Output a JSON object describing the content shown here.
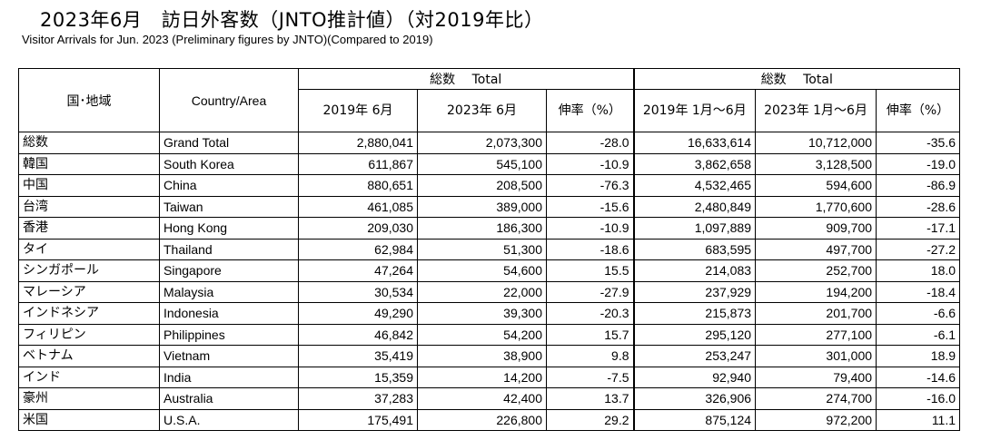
{
  "title": "2023年6月　訪日外客数（JNTO推計値）（対2019年比）",
  "subtitle": "Visitor Arrivals for Jun. 2023 (Preliminary figures by JNTO)(Compared to 2019)",
  "header": {
    "region_jp": "国･地域",
    "region_en": "Country/Area",
    "group_left": "総数　 Total",
    "group_right": "総数　 Total",
    "col_2019_month": "2019年 6月",
    "col_2023_month": "2023年 6月",
    "col_rate": "伸率（%）",
    "col_2019_ytd": "2019年 1月～6月",
    "col_2023_ytd": "2023年 1月～6月",
    "col_rate_ytd": "伸率（%）"
  },
  "rows": [
    {
      "jp": "総数",
      "en": "Grand Total",
      "m2019": "2,880,041",
      "m2023": "2,073,300",
      "rate": "-28.0",
      "y2019": "16,633,614",
      "y2023": "10,712,000",
      "yrate": "-35.6"
    },
    {
      "jp": "韓国",
      "en": "South Korea",
      "m2019": "611,867",
      "m2023": "545,100",
      "rate": "-10.9",
      "y2019": "3,862,658",
      "y2023": "3,128,500",
      "yrate": "-19.0"
    },
    {
      "jp": "中国",
      "en": "China",
      "m2019": "880,651",
      "m2023": "208,500",
      "rate": "-76.3",
      "y2019": "4,532,465",
      "y2023": "594,600",
      "yrate": "-86.9"
    },
    {
      "jp": "台湾",
      "en": "Taiwan",
      "m2019": "461,085",
      "m2023": "389,000",
      "rate": "-15.6",
      "y2019": "2,480,849",
      "y2023": "1,770,600",
      "yrate": "-28.6"
    },
    {
      "jp": "香港",
      "en": "Hong Kong",
      "m2019": "209,030",
      "m2023": "186,300",
      "rate": "-10.9",
      "y2019": "1,097,889",
      "y2023": "909,700",
      "yrate": "-17.1"
    },
    {
      "jp": "タイ",
      "en": "Thailand",
      "m2019": "62,984",
      "m2023": "51,300",
      "rate": "-18.6",
      "y2019": "683,595",
      "y2023": "497,700",
      "yrate": "-27.2"
    },
    {
      "jp": "シンガポール",
      "en": "Singapore",
      "m2019": "47,264",
      "m2023": "54,600",
      "rate": "15.5",
      "y2019": "214,083",
      "y2023": "252,700",
      "yrate": "18.0"
    },
    {
      "jp": "マレーシア",
      "en": "Malaysia",
      "m2019": "30,534",
      "m2023": "22,000",
      "rate": "-27.9",
      "y2019": "237,929",
      "y2023": "194,200",
      "yrate": "-18.4"
    },
    {
      "jp": "インドネシア",
      "en": "Indonesia",
      "m2019": "49,290",
      "m2023": "39,300",
      "rate": "-20.3",
      "y2019": "215,873",
      "y2023": "201,700",
      "yrate": "-6.6"
    },
    {
      "jp": "フィリピン",
      "en": "Philippines",
      "m2019": "46,842",
      "m2023": "54,200",
      "rate": "15.7",
      "y2019": "295,120",
      "y2023": "277,100",
      "yrate": "-6.1"
    },
    {
      "jp": "ベトナム",
      "en": "Vietnam",
      "m2019": "35,419",
      "m2023": "38,900",
      "rate": "9.8",
      "y2019": "253,247",
      "y2023": "301,000",
      "yrate": "18.9"
    },
    {
      "jp": "インド",
      "en": "India",
      "m2019": "15,359",
      "m2023": "14,200",
      "rate": "-7.5",
      "y2019": "92,940",
      "y2023": "79,400",
      "yrate": "-14.6"
    },
    {
      "jp": "豪州",
      "en": "Australia",
      "m2019": "37,283",
      "m2023": "42,400",
      "rate": "13.7",
      "y2019": "326,906",
      "y2023": "274,700",
      "yrate": "-16.0"
    },
    {
      "jp": "米国",
      "en": "U.S.A.",
      "m2019": "175,491",
      "m2023": "226,800",
      "rate": "29.2",
      "y2019": "875,124",
      "y2023": "972,200",
      "yrate": "11.1"
    }
  ]
}
